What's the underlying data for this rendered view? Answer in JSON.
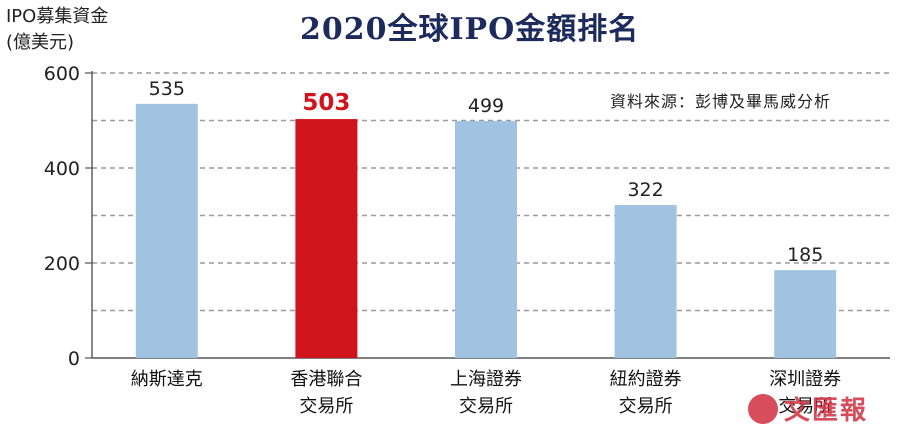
{
  "chart_data": {
    "type": "bar",
    "title": "2020全球IPO金額排名",
    "ylabel_line1": "IPO募集資金",
    "ylabel_line2": "(億美元)",
    "source": "資料來源：彭博及畢馬威分析",
    "ylim": [
      0,
      600
    ],
    "yticks": [
      0,
      200,
      400,
      600
    ],
    "grid": true,
    "categories": [
      [
        "納斯達克"
      ],
      [
        "香港聯合",
        "交易所"
      ],
      [
        "上海證券",
        "交易所"
      ],
      [
        "紐約證券",
        "交易所"
      ],
      [
        "深圳證券",
        "交易所"
      ]
    ],
    "values": [
      535,
      503,
      499,
      322,
      185
    ],
    "value_labels": [
      "535",
      "503",
      "499",
      "322",
      "185"
    ],
    "highlight_index": 1,
    "colors": {
      "bar": "#a0c3e1",
      "highlight": "#d0141c",
      "title": "#1d2a5c",
      "grid": "#9a9a9a"
    }
  },
  "watermark": "文匯報"
}
